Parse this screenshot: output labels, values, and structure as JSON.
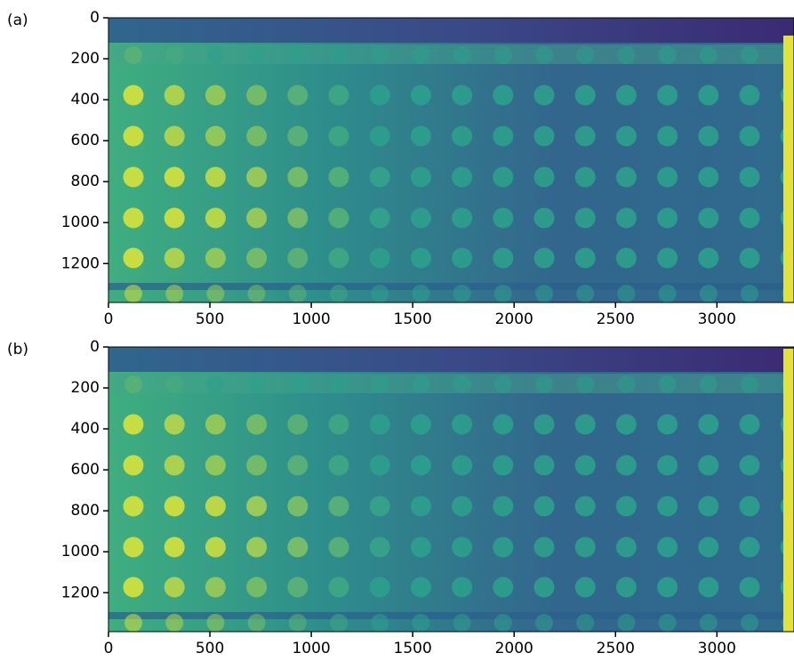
{
  "chart_data": [
    {
      "type": "image",
      "label": "(a)",
      "xlim": [
        0,
        3380
      ],
      "ylim": [
        1390,
        0
      ],
      "xticks": [
        0,
        500,
        1000,
        1500,
        2000,
        2500,
        3000
      ],
      "yticks": [
        0,
        200,
        400,
        600,
        800,
        1000,
        1200
      ]
    },
    {
      "type": "image",
      "label": "(b)",
      "xlim": [
        0,
        3380
      ],
      "ylim": [
        1390,
        0
      ],
      "xticks": [
        0,
        500,
        1000,
        1500,
        2000,
        2500,
        3000
      ],
      "yticks": [
        0,
        200,
        400,
        600,
        800,
        1000,
        1200
      ]
    }
  ]
}
